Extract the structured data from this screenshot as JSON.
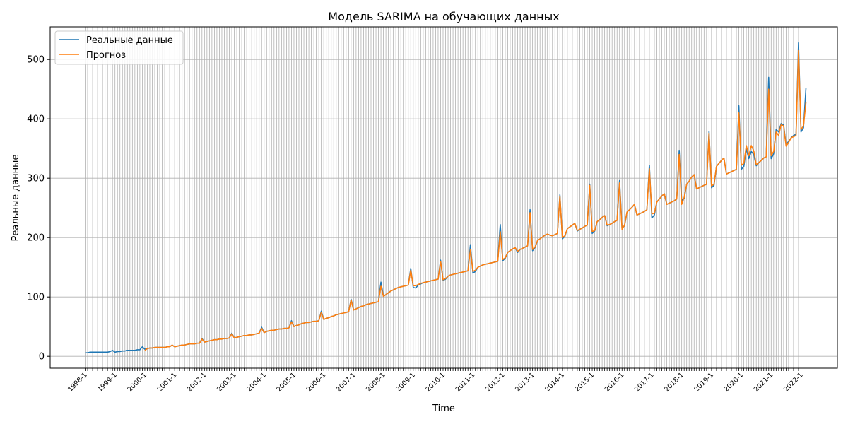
{
  "chart_data": {
    "type": "line",
    "title": "Модель SARIMA на обучающих данных",
    "xlabel": "Time",
    "ylabel": "Реальные данные",
    "x_start": "1998-01",
    "x_end": "2022-01",
    "x_frequency": "monthly",
    "xtick_labels": [
      "1998-1",
      "1999-1",
      "2000-1",
      "2001-1",
      "2002-1",
      "2003-1",
      "2004-1",
      "2005-1",
      "2006-1",
      "2007-1",
      "2008-1",
      "2009-1",
      "2010-1",
      "2011-1",
      "2012-1",
      "2013-1",
      "2014-1",
      "2015-1",
      "2016-1",
      "2017-1",
      "2018-1",
      "2019-1",
      "2020-1",
      "2021-1",
      "2022-1"
    ],
    "ylim": [
      -20,
      555
    ],
    "yticks": [
      0,
      100,
      200,
      300,
      400,
      500
    ],
    "grid": true,
    "vertical_gridlines": "monthly",
    "legend": "upper-left",
    "series": [
      {
        "name": "Реальные данные",
        "color": "#1f77b4",
        "start_index": 0,
        "values": [
          6,
          6,
          7,
          7,
          7,
          7,
          7,
          7,
          7,
          7,
          8,
          10,
          7,
          8,
          8,
          9,
          9,
          10,
          10,
          10,
          10,
          11,
          11,
          16,
          12,
          13,
          14,
          14,
          15,
          15,
          15,
          15,
          15,
          16,
          16,
          19,
          16,
          17,
          18,
          19,
          19,
          20,
          21,
          21,
          21,
          22,
          22,
          30,
          24,
          25,
          26,
          27,
          28,
          28,
          29,
          29,
          30,
          30,
          31,
          39,
          31,
          32,
          33,
          34,
          35,
          35,
          36,
          36,
          37,
          38,
          39,
          49,
          40,
          42,
          43,
          44,
          44,
          45,
          46,
          46,
          47,
          47,
          48,
          60,
          50,
          52,
          53,
          55,
          56,
          57,
          57,
          58,
          59,
          59,
          60,
          76,
          62,
          64,
          65,
          67,
          68,
          70,
          71,
          72,
          73,
          74,
          75,
          96,
          78,
          80,
          82,
          84,
          85,
          87,
          88,
          89,
          90,
          91,
          92,
          125,
          101,
          104,
          107,
          110,
          112,
          114,
          116,
          117,
          118,
          119,
          120,
          148,
          116,
          115,
          120,
          122,
          124,
          125,
          126,
          127,
          128,
          129,
          130,
          162,
          128,
          130,
          135,
          137,
          138,
          139,
          140,
          141,
          142,
          143,
          144,
          188,
          140,
          143,
          150,
          152,
          154,
          155,
          156,
          157,
          158,
          159,
          160,
          222,
          161,
          165,
          175,
          178,
          181,
          183,
          175,
          180,
          182,
          184,
          186,
          247,
          178,
          183,
          195,
          198,
          201,
          204,
          206,
          204,
          203,
          205,
          207,
          272,
          198,
          202,
          215,
          218,
          221,
          224,
          211,
          214,
          216,
          219,
          221,
          290,
          207,
          211,
          227,
          230,
          234,
          237,
          220,
          222,
          224,
          227,
          229,
          296,
          216,
          220,
          243,
          247,
          251,
          256,
          238,
          240,
          242,
          244,
          247,
          322,
          233,
          238,
          260,
          265,
          270,
          274,
          256,
          258,
          260,
          262,
          265,
          347,
          262,
          266,
          290,
          295,
          302,
          306,
          282,
          284,
          286,
          288,
          290,
          379,
          284,
          288,
          320,
          325,
          330,
          334,
          307,
          309,
          311,
          313,
          315,
          422,
          315,
          320,
          350,
          333,
          345,
          340,
          321,
          326,
          330,
          334,
          336,
          470,
          333,
          341,
          382,
          378,
          392,
          390,
          356,
          362,
          368,
          372,
          374,
          528,
          378,
          385,
          452
        ]
      },
      {
        "name": "Прогноз",
        "color": "#ff7f0e",
        "start_index": 24,
        "values": [
          10,
          13,
          14,
          14,
          15,
          15,
          15,
          15,
          15,
          16,
          16,
          19,
          16,
          17,
          18,
          19,
          19,
          20,
          21,
          21,
          21,
          22,
          22,
          29,
          24,
          25,
          26,
          27,
          28,
          28,
          29,
          29,
          30,
          30,
          31,
          38,
          31,
          32,
          33,
          34,
          35,
          35,
          36,
          36,
          37,
          38,
          39,
          47,
          40,
          42,
          43,
          44,
          44,
          45,
          46,
          46,
          47,
          47,
          48,
          58,
          50,
          52,
          53,
          55,
          56,
          57,
          57,
          58,
          59,
          59,
          60,
          74,
          62,
          64,
          65,
          67,
          68,
          70,
          71,
          72,
          73,
          74,
          75,
          95,
          78,
          80,
          82,
          84,
          85,
          87,
          88,
          89,
          90,
          91,
          92,
          118,
          101,
          104,
          107,
          110,
          112,
          114,
          116,
          117,
          118,
          119,
          120,
          145,
          119,
          119,
          121,
          123,
          124,
          125,
          126,
          127,
          128,
          129,
          130,
          160,
          129,
          131,
          135,
          137,
          138,
          139,
          140,
          141,
          142,
          143,
          144,
          180,
          143,
          145,
          150,
          152,
          154,
          155,
          156,
          157,
          158,
          159,
          160,
          210,
          163,
          166,
          175,
          178,
          181,
          183,
          177,
          180,
          182,
          184,
          186,
          242,
          180,
          184,
          195,
          198,
          201,
          204,
          206,
          204,
          203,
          205,
          207,
          270,
          200,
          203,
          215,
          218,
          221,
          224,
          212,
          214,
          216,
          219,
          221,
          288,
          210,
          212,
          227,
          230,
          234,
          237,
          221,
          222,
          224,
          227,
          229,
          292,
          214,
          221,
          243,
          247,
          251,
          256,
          238,
          240,
          242,
          244,
          247,
          316,
          240,
          241,
          260,
          265,
          270,
          274,
          256,
          258,
          260,
          262,
          265,
          340,
          256,
          268,
          290,
          295,
          302,
          306,
          282,
          284,
          286,
          288,
          290,
          376,
          287,
          290,
          320,
          325,
          330,
          334,
          307,
          309,
          311,
          313,
          315,
          410,
          322,
          325,
          355,
          338,
          355,
          346,
          323,
          326,
          330,
          334,
          336,
          450,
          338,
          345,
          378,
          372,
          390,
          388,
          354,
          360,
          368,
          370,
          372,
          515,
          382,
          388,
          428
        ]
      }
    ]
  }
}
